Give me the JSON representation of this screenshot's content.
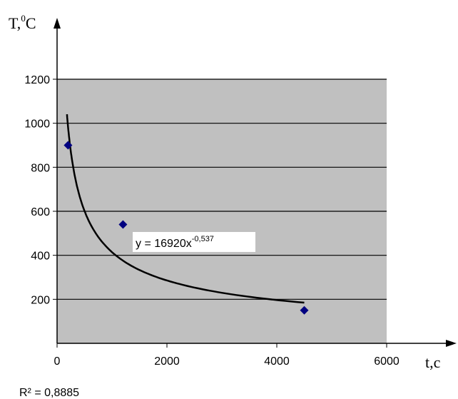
{
  "chart_data": {
    "type": "scatter",
    "xlim": [
      0,
      6000
    ],
    "ylim": [
      0,
      1200
    ],
    "x_ticks": [
      0,
      2000,
      4000,
      6000
    ],
    "y_ticks": [
      200,
      400,
      600,
      800,
      1000,
      1200
    ],
    "x_tick_labels": [
      "0",
      "2000",
      "4000",
      "6000"
    ],
    "y_tick_labels": [
      "200",
      "400",
      "600",
      "800",
      "1000",
      "1200"
    ],
    "xlabel": "t,c",
    "ylabel": {
      "base": "T,",
      "sup": "0",
      "rest": "C"
    },
    "grid": "horizontal",
    "plot_background": "#c0c0c0",
    "points": [
      {
        "x": 200,
        "y": 900
      },
      {
        "x": 1200,
        "y": 540
      },
      {
        "x": 4500,
        "y": 150
      }
    ],
    "point_color": "#000080",
    "trendline": {
      "type": "power",
      "coefficient": 16920,
      "exponent": -0.537,
      "x_range": [
        180,
        4500
      ],
      "equation_base": "y = 16920x",
      "equation_exp": "-0,537",
      "r_squared_text": "R² = 0,8885"
    }
  }
}
